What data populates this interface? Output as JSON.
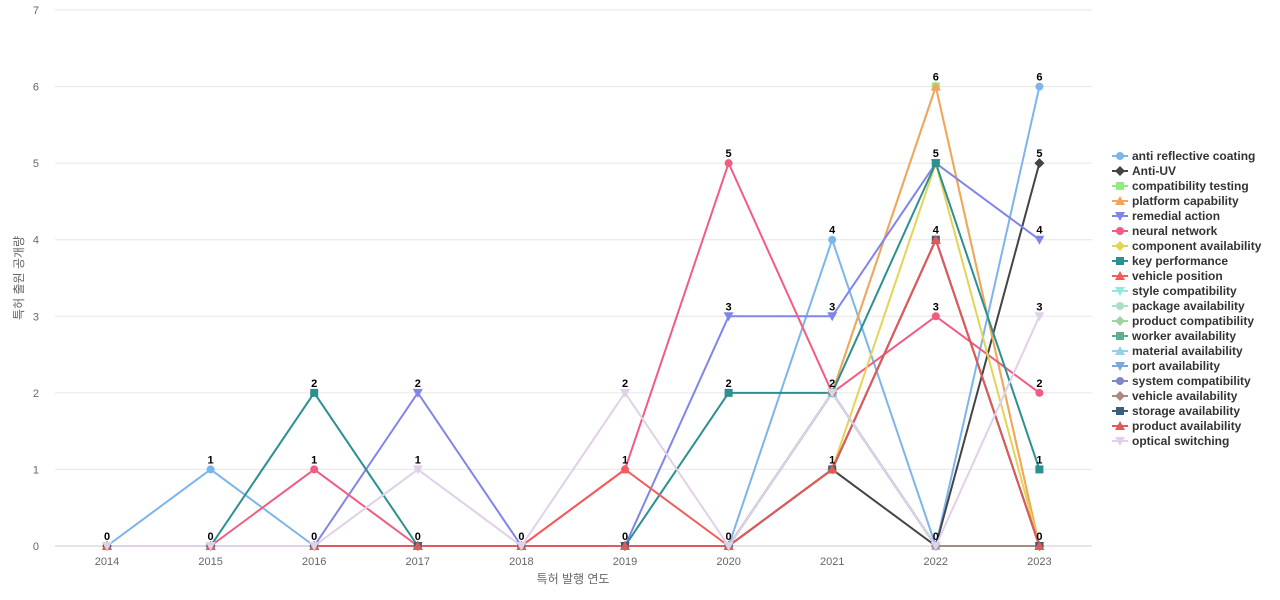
{
  "chart_data": {
    "type": "line",
    "title": "",
    "xlabel": "특허 발행 연도",
    "ylabel": "특허 출원 공개량",
    "ylim": [
      0,
      7
    ],
    "yticks": [
      0,
      1,
      2,
      3,
      4,
      5,
      6,
      7
    ],
    "grid": true,
    "legend_position": "right",
    "categories": [
      "2014",
      "2015",
      "2016",
      "2017",
      "2018",
      "2019",
      "2020",
      "2021",
      "2022",
      "2023"
    ],
    "series": [
      {
        "name": "anti reflective coating",
        "color": "#7cb5ec",
        "marker": "circle",
        "values": [
          0,
          1,
          0,
          0,
          0,
          0,
          0,
          4,
          0,
          6
        ]
      },
      {
        "name": "Anti-UV",
        "color": "#434348",
        "marker": "diamond",
        "values": [
          0,
          0,
          0,
          0,
          0,
          0,
          0,
          1,
          0,
          5
        ]
      },
      {
        "name": "compatibility testing",
        "color": "#90ed7d",
        "marker": "square",
        "values": [
          0,
          0,
          0,
          0,
          0,
          0,
          0,
          2,
          6,
          0
        ]
      },
      {
        "name": "platform capability",
        "color": "#f7a35c",
        "marker": "triangle",
        "values": [
          0,
          0,
          0,
          0,
          0,
          0,
          0,
          2,
          6,
          0
        ]
      },
      {
        "name": "remedial action",
        "color": "#8085e9",
        "marker": "triangle-down",
        "values": [
          0,
          0,
          0,
          2,
          0,
          0,
          3,
          3,
          5,
          4
        ]
      },
      {
        "name": "neural network",
        "color": "#f15c80",
        "marker": "circle",
        "values": [
          0,
          0,
          1,
          0,
          0,
          1,
          5,
          2,
          3,
          2
        ]
      },
      {
        "name": "component availability",
        "color": "#e4d354",
        "marker": "diamond",
        "values": [
          0,
          0,
          0,
          0,
          0,
          0,
          0,
          1,
          5,
          0
        ]
      },
      {
        "name": "key performance",
        "color": "#2b908f",
        "marker": "square",
        "values": [
          0,
          0,
          2,
          0,
          0,
          0,
          2,
          2,
          5,
          1
        ]
      },
      {
        "name": "vehicle position",
        "color": "#f45b5b",
        "marker": "triangle",
        "values": [
          0,
          0,
          0,
          0,
          0,
          1,
          0,
          1,
          4,
          0
        ]
      },
      {
        "name": "style compatibility",
        "color": "#91e8e1",
        "marker": "triangle-down",
        "values": [
          0,
          0,
          0,
          0,
          0,
          0,
          0,
          2,
          0,
          0
        ]
      },
      {
        "name": "package availability",
        "color": "#a8e0c8",
        "marker": "circle",
        "values": [
          0,
          0,
          0,
          0,
          0,
          0,
          0,
          2,
          0,
          0
        ]
      },
      {
        "name": "product compatibility",
        "color": "#9fd39f",
        "marker": "diamond",
        "values": [
          0,
          0,
          0,
          0,
          0,
          0,
          0,
          2,
          0,
          0
        ]
      },
      {
        "name": "worker availability",
        "color": "#5cb08f",
        "marker": "square",
        "values": [
          0,
          0,
          0,
          0,
          0,
          0,
          0,
          2,
          0,
          0
        ]
      },
      {
        "name": "material availability",
        "color": "#8fd3e8",
        "marker": "triangle",
        "values": [
          0,
          0,
          0,
          0,
          0,
          0,
          0,
          2,
          0,
          0
        ]
      },
      {
        "name": "port availability",
        "color": "#7ea6d8",
        "marker": "triangle-down",
        "values": [
          0,
          0,
          0,
          0,
          0,
          0,
          0,
          2,
          0,
          0
        ]
      },
      {
        "name": "system compatibility",
        "color": "#7f86c8",
        "marker": "circle",
        "values": [
          0,
          0,
          0,
          0,
          0,
          0,
          0,
          2,
          0,
          0
        ]
      },
      {
        "name": "vehicle availability",
        "color": "#a88b7d",
        "marker": "diamond",
        "values": [
          0,
          0,
          0,
          0,
          0,
          0,
          0,
          2,
          0,
          0
        ]
      },
      {
        "name": "storage availability",
        "color": "#3a5f7d",
        "marker": "square",
        "values": [
          0,
          0,
          0,
          0,
          0,
          0,
          0,
          1,
          4,
          0
        ]
      },
      {
        "name": "product availability",
        "color": "#e05a5a",
        "marker": "triangle",
        "values": [
          0,
          0,
          0,
          0,
          0,
          0,
          0,
          1,
          4,
          0
        ]
      },
      {
        "name": "optical switching",
        "color": "#e0d0e8",
        "marker": "triangle-down",
        "values": [
          0,
          0,
          0,
          1,
          0,
          2,
          0,
          2,
          0,
          3
        ]
      }
    ],
    "point_labels": [
      {
        "x": "2014",
        "value": 0
      },
      {
        "x": "2015",
        "value": 1
      },
      {
        "x": "2015",
        "value": 0
      },
      {
        "x": "2016",
        "value": 2
      },
      {
        "x": "2016",
        "value": 1
      },
      {
        "x": "2016",
        "value": 0
      },
      {
        "x": "2017",
        "value": 2
      },
      {
        "x": "2017",
        "value": 1
      },
      {
        "x": "2017",
        "value": 0
      },
      {
        "x": "2018",
        "value": 0
      },
      {
        "x": "2019",
        "value": 2
      },
      {
        "x": "2019",
        "value": 1
      },
      {
        "x": "2019",
        "value": 0
      },
      {
        "x": "2020",
        "value": 5
      },
      {
        "x": "2020",
        "value": 3
      },
      {
        "x": "2020",
        "value": 2
      },
      {
        "x": "2020",
        "value": 0
      },
      {
        "x": "2021",
        "value": 4
      },
      {
        "x": "2021",
        "value": 3
      },
      {
        "x": "2021",
        "value": 2
      },
      {
        "x": "2021",
        "value": 1
      },
      {
        "x": "2022",
        "value": 6
      },
      {
        "x": "2022",
        "value": 5
      },
      {
        "x": "2022",
        "value": 4
      },
      {
        "x": "2022",
        "value": 3
      },
      {
        "x": "2022",
        "value": 0
      },
      {
        "x": "2023",
        "value": 6
      },
      {
        "x": "2023",
        "value": 5
      },
      {
        "x": "2023",
        "value": 4
      },
      {
        "x": "2023",
        "value": 3
      },
      {
        "x": "2023",
        "value": 2
      },
      {
        "x": "2023",
        "value": 1
      },
      {
        "x": "2023",
        "value": 0
      }
    ]
  }
}
